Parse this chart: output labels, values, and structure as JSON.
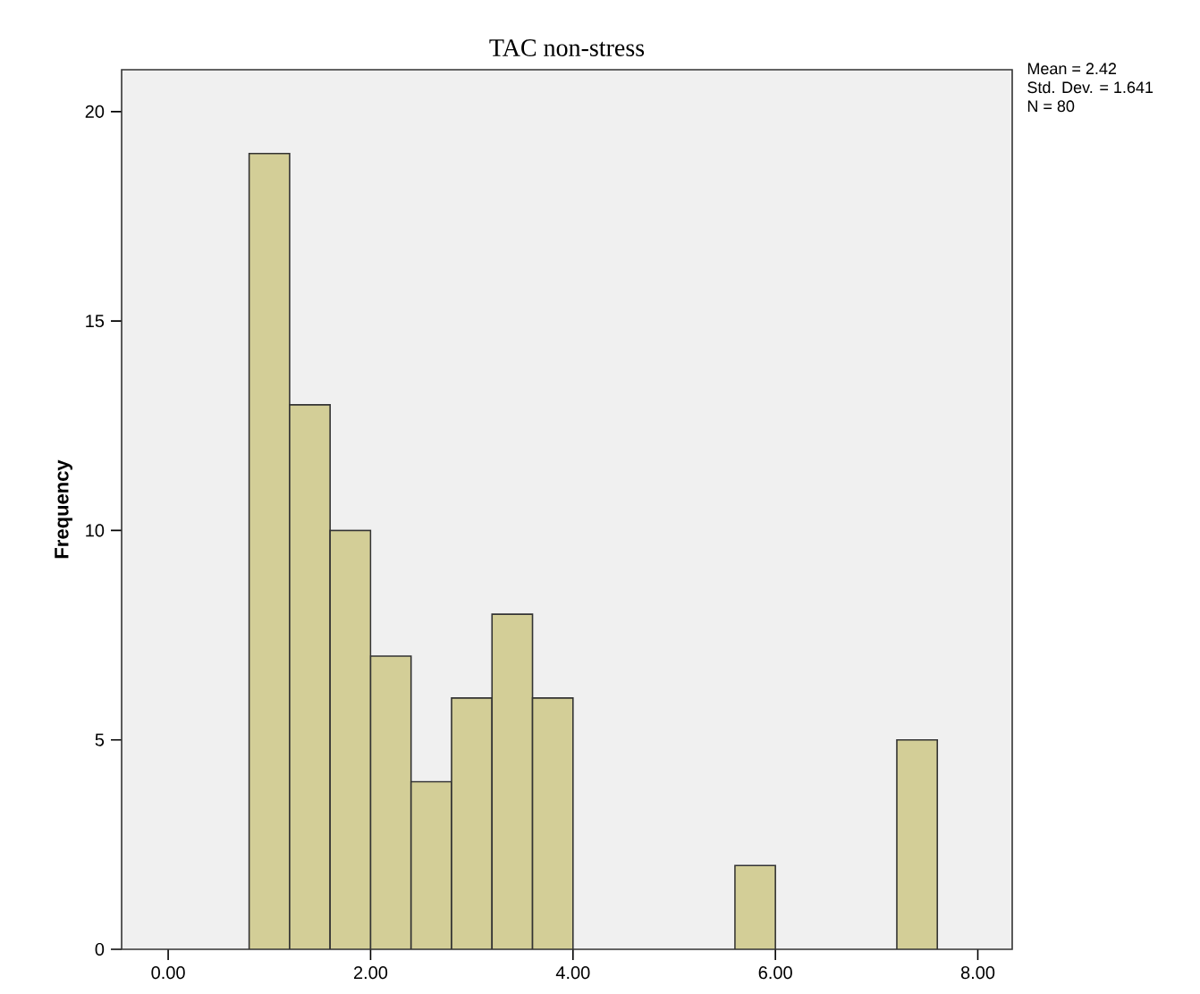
{
  "chart_data": {
    "type": "histogram",
    "title": "TAC non-stress",
    "ylabel": "Frequency",
    "bins": [
      0.8,
      1.2,
      1.6,
      2.0,
      2.4,
      2.8,
      3.2,
      3.6,
      4.0,
      4.4,
      4.8,
      5.2,
      5.6,
      6.0,
      6.4,
      6.8,
      7.2,
      7.6
    ],
    "values": [
      19,
      13,
      10,
      7,
      4,
      6,
      8,
      6,
      0,
      0,
      0,
      0,
      2,
      0,
      0,
      0,
      5
    ],
    "color": "#d3ce97",
    "xlim": [
      -0.46,
      8.34
    ],
    "ylim": [
      0,
      21
    ],
    "xticks": [
      {
        "value": 0,
        "label": "0.00"
      },
      {
        "value": 2,
        "label": "2.00"
      },
      {
        "value": 4,
        "label": "4.00"
      },
      {
        "value": 6,
        "label": "6.00"
      },
      {
        "value": 8,
        "label": "8.00"
      }
    ],
    "yticks": [
      0,
      5,
      10,
      15,
      20
    ],
    "grid": false,
    "annotations": [
      "Mean = 2.42",
      "Std. Dev. = 1.641",
      "N = 80"
    ]
  }
}
